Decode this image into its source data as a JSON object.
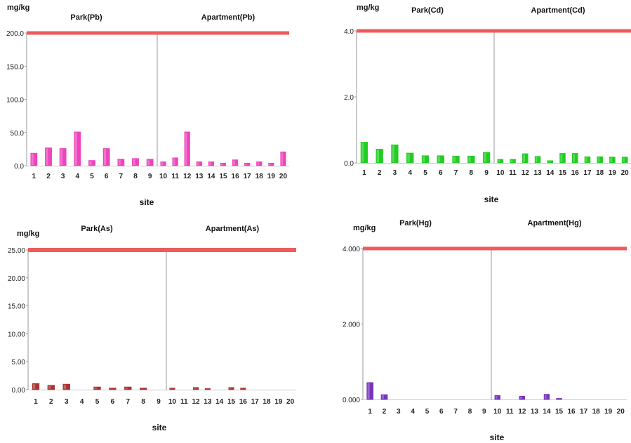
{
  "chart_data": [
    {
      "type": "bar",
      "ylabel": "mg/kg",
      "xlabel": "site",
      "group_titles": [
        "Park(Pb)",
        "Apartment(Pb)"
      ],
      "categories": [
        "1",
        "2",
        "3",
        "4",
        "5",
        "6",
        "7",
        "8",
        "9",
        "10",
        "11",
        "12",
        "13",
        "14",
        "15",
        "16",
        "17",
        "18",
        "19",
        "20"
      ],
      "values": [
        19,
        27,
        26,
        51,
        8,
        26,
        10,
        11,
        10,
        6,
        12,
        51,
        6,
        6,
        4,
        9,
        4,
        6,
        4,
        21
      ],
      "ylim": [
        0,
        200
      ],
      "yticks": [
        "0.0",
        "50.0",
        "100.0",
        "150.0",
        "200.0"
      ],
      "reference_line": 200,
      "color": "#ee44bb"
    },
    {
      "type": "bar",
      "ylabel": "mg/kg",
      "xlabel": "site",
      "group_titles": [
        "Park(Cd)",
        "Apartment(Cd)"
      ],
      "categories": [
        "1",
        "2",
        "3",
        "4",
        "5",
        "6",
        "7",
        "8",
        "9",
        "10",
        "11",
        "12",
        "13",
        "14",
        "15",
        "16",
        "17",
        "18",
        "19",
        "20"
      ],
      "values": [
        0.63,
        0.42,
        0.55,
        0.3,
        0.22,
        0.22,
        0.21,
        0.21,
        0.32,
        0.11,
        0.11,
        0.28,
        0.2,
        0.07,
        0.29,
        0.29,
        0.19,
        0.19,
        0.18,
        0.18
      ],
      "ylim": [
        0,
        4
      ],
      "yticks": [
        "0.0",
        "2.0",
        "4.0"
      ],
      "reference_line": 4,
      "color": "#22cc22"
    },
    {
      "type": "bar",
      "ylabel": "mg/kg",
      "xlabel": "site",
      "group_titles": [
        "Park(As)",
        "Apartment(As)"
      ],
      "categories": [
        "1",
        "2",
        "3",
        "4",
        "5",
        "6",
        "7",
        "8",
        "9",
        "10",
        "11",
        "12",
        "13",
        "14",
        "15",
        "16",
        "17",
        "18",
        "19",
        "20"
      ],
      "values": [
        1.1,
        0.8,
        1.0,
        0,
        0.5,
        0.3,
        0.5,
        0.3,
        0,
        0.3,
        0,
        0.4,
        0.2,
        0,
        0.4,
        0.3,
        0,
        0,
        0,
        0
      ],
      "ylim": [
        0,
        25
      ],
      "yticks": [
        "0.00",
        "5.00",
        "10.00",
        "15.00",
        "20.00",
        "25.00"
      ],
      "reference_line": 25,
      "color": "#a83232"
    },
    {
      "type": "bar",
      "ylabel": "mg/kg",
      "xlabel": "site",
      "group_titles": [
        "Park(Hg)",
        "Apartment(Hg)"
      ],
      "categories": [
        "1",
        "2",
        "3",
        "4",
        "5",
        "6",
        "7",
        "8",
        "9",
        "10",
        "11",
        "12",
        "13",
        "14",
        "15",
        "16",
        "17",
        "18",
        "19",
        "20"
      ],
      "values": [
        0.45,
        0.13,
        0,
        0,
        0,
        0,
        0,
        0,
        0,
        0.11,
        0,
        0.09,
        0,
        0.14,
        0.03,
        0,
        0,
        0,
        0,
        0
      ],
      "ylim": [
        0,
        4
      ],
      "yticks": [
        "0.000",
        "2.000",
        "4.000"
      ],
      "reference_line": 4,
      "color": "#7733bb"
    }
  ]
}
